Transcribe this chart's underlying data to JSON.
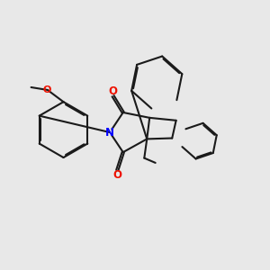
{
  "background_color": "#e8e8e8",
  "bond_color": "#1a1a1a",
  "nitrogen_color": "#0000ff",
  "oxygen_color": "#ee1100",
  "line_width": 1.5,
  "dbo": 0.06,
  "fig_size": [
    3.0,
    3.0
  ],
  "dpi": 100,
  "xlim": [
    0,
    10
  ],
  "ylim": [
    0,
    10
  ]
}
